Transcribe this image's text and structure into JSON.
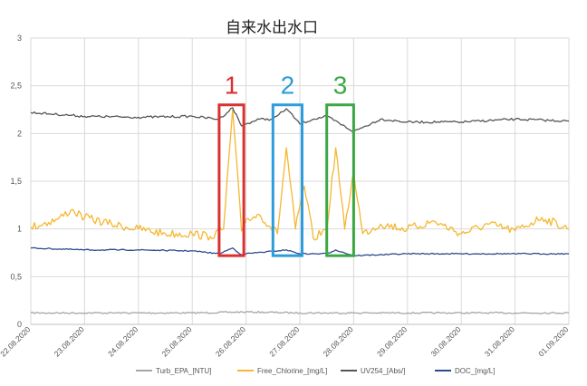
{
  "chart_data": {
    "type": "line",
    "title": "自来水出水口",
    "y_ticks": [
      "0",
      "0,5",
      "1",
      "1,5",
      "2",
      "2,5",
      "3"
    ],
    "ylim": [
      0,
      3
    ],
    "x_dates": [
      "22.08.2020",
      "23.08.2020",
      "24.08.2020",
      "25.08.2020",
      "26.08.2020",
      "27.08.2020",
      "28.08.2020",
      "29.08.2020",
      "30.08.2020",
      "31.08.2020",
      "01.09.2020"
    ],
    "grid": true,
    "legend_position": "bottom",
    "series": [
      {
        "name": "Turb_EPA_[NTU]",
        "color": "#a6a6a6",
        "points": [
          [
            "22.08.2020 00:00",
            0.12
          ],
          [
            "23.08.2020 00:00",
            0.12
          ],
          [
            "24.08.2020 00:00",
            0.12
          ],
          [
            "25.08.2020 00:00",
            0.12
          ],
          [
            "26.08.2020 00:00",
            0.13
          ],
          [
            "27.08.2020 00:00",
            0.12
          ],
          [
            "28.08.2020 00:00",
            0.12
          ],
          [
            "29.08.2020 00:00",
            0.12
          ],
          [
            "30.08.2020 00:00",
            0.12
          ],
          [
            "31.08.2020 00:00",
            0.12
          ],
          [
            "01.09.2020 00:00",
            0.12
          ]
        ]
      },
      {
        "name": "Free_Chlorine_[mg/L]",
        "color": "#f5b731",
        "points": [
          [
            "22.08.2020 00:00",
            1.02
          ],
          [
            "22.08.2020 12:00",
            1.1
          ],
          [
            "22.08.2020 18:00",
            1.2
          ],
          [
            "23.08.2020 00:00",
            1.12
          ],
          [
            "23.08.2020 12:00",
            1.05
          ],
          [
            "24.08.2020 00:00",
            1.0
          ],
          [
            "24.08.2020 12:00",
            0.95
          ],
          [
            "25.08.2020 00:00",
            0.95
          ],
          [
            "25.08.2020 08:00",
            0.92
          ],
          [
            "25.08.2020 14:00",
            1.0
          ],
          [
            "25.08.2020 18:00",
            2.25
          ],
          [
            "25.08.2020 22:00",
            0.98
          ],
          [
            "26.08.2020 00:00",
            1.1
          ],
          [
            "26.08.2020 06:00",
            1.15
          ],
          [
            "26.08.2020 14:00",
            0.95
          ],
          [
            "26.08.2020 18:00",
            1.85
          ],
          [
            "26.08.2020 22:00",
            1.0
          ],
          [
            "27.08.2020 02:00",
            1.45
          ],
          [
            "27.08.2020 06:00",
            0.9
          ],
          [
            "27.08.2020 12:00",
            1.0
          ],
          [
            "27.08.2020 16:00",
            1.85
          ],
          [
            "27.08.2020 20:00",
            1.0
          ],
          [
            "28.08.2020 00:00",
            1.6
          ],
          [
            "28.08.2020 04:00",
            0.95
          ],
          [
            "28.08.2020 12:00",
            1.05
          ],
          [
            "29.08.2020 00:00",
            1.0
          ],
          [
            "29.08.2020 12:00",
            1.08
          ],
          [
            "30.08.2020 00:00",
            0.95
          ],
          [
            "30.08.2020 12:00",
            1.05
          ],
          [
            "31.08.2020 00:00",
            0.98
          ],
          [
            "31.08.2020 12:00",
            1.12
          ],
          [
            "01.09.2020 00:00",
            1.0
          ]
        ]
      },
      {
        "name": "UV254_[Abs/]",
        "color": "#555555",
        "points": [
          [
            "22.08.2020 00:00",
            2.22
          ],
          [
            "23.08.2020 00:00",
            2.18
          ],
          [
            "24.08.2020 00:00",
            2.17
          ],
          [
            "25.08.2020 00:00",
            2.18
          ],
          [
            "25.08.2020 12:00",
            2.15
          ],
          [
            "25.08.2020 18:00",
            2.27
          ],
          [
            "25.08.2020 22:00",
            2.08
          ],
          [
            "26.08.2020 00:00",
            2.1
          ],
          [
            "26.08.2020 06:00",
            2.15
          ],
          [
            "26.08.2020 12:00",
            2.15
          ],
          [
            "26.08.2020 18:00",
            2.26
          ],
          [
            "27.08.2020 00:00",
            2.1
          ],
          [
            "27.08.2020 06:00",
            2.15
          ],
          [
            "27.08.2020 12:00",
            2.18
          ],
          [
            "28.08.2020 00:00",
            2.02
          ],
          [
            "28.08.2020 12:00",
            2.15
          ],
          [
            "29.08.2020 00:00",
            2.12
          ],
          [
            "30.08.2020 00:00",
            2.12
          ],
          [
            "31.08.2020 00:00",
            2.15
          ],
          [
            "01.09.2020 00:00",
            2.13
          ]
        ]
      },
      {
        "name": "DOC_[mg/L]",
        "color": "#2e4a8f",
        "points": [
          [
            "22.08.2020 00:00",
            0.8
          ],
          [
            "23.08.2020 00:00",
            0.78
          ],
          [
            "24.08.2020 00:00",
            0.78
          ],
          [
            "25.08.2020 00:00",
            0.77
          ],
          [
            "25.08.2020 12:00",
            0.74
          ],
          [
            "25.08.2020 18:00",
            0.8
          ],
          [
            "25.08.2020 22:00",
            0.73
          ],
          [
            "26.08.2020 00:00",
            0.74
          ],
          [
            "26.08.2020 18:00",
            0.78
          ],
          [
            "27.08.2020 00:00",
            0.74
          ],
          [
            "27.08.2020 12:00",
            0.74
          ],
          [
            "27.08.2020 16:00",
            0.78
          ],
          [
            "28.08.2020 00:00",
            0.72
          ],
          [
            "29.08.2020 00:00",
            0.74
          ],
          [
            "30.08.2020 00:00",
            0.74
          ],
          [
            "31.08.2020 00:00",
            0.74
          ],
          [
            "01.09.2020 00:00",
            0.74
          ]
        ]
      }
    ],
    "annotations": [
      {
        "label": "1",
        "color": "#d93030",
        "x_start": "25.08.2020 12:00",
        "x_end": "25.08.2020 23:00",
        "y_start": 0.72,
        "y_end": 2.3
      },
      {
        "label": "2",
        "color": "#2d9cdb",
        "x_start": "26.08.2020 12:00",
        "x_end": "27.08.2020 01:00",
        "y_start": 0.72,
        "y_end": 2.3
      },
      {
        "label": "3",
        "color": "#3aa842",
        "x_start": "27.08.2020 12:00",
        "x_end": "28.08.2020 00:00",
        "y_start": 0.72,
        "y_end": 2.3
      }
    ]
  }
}
